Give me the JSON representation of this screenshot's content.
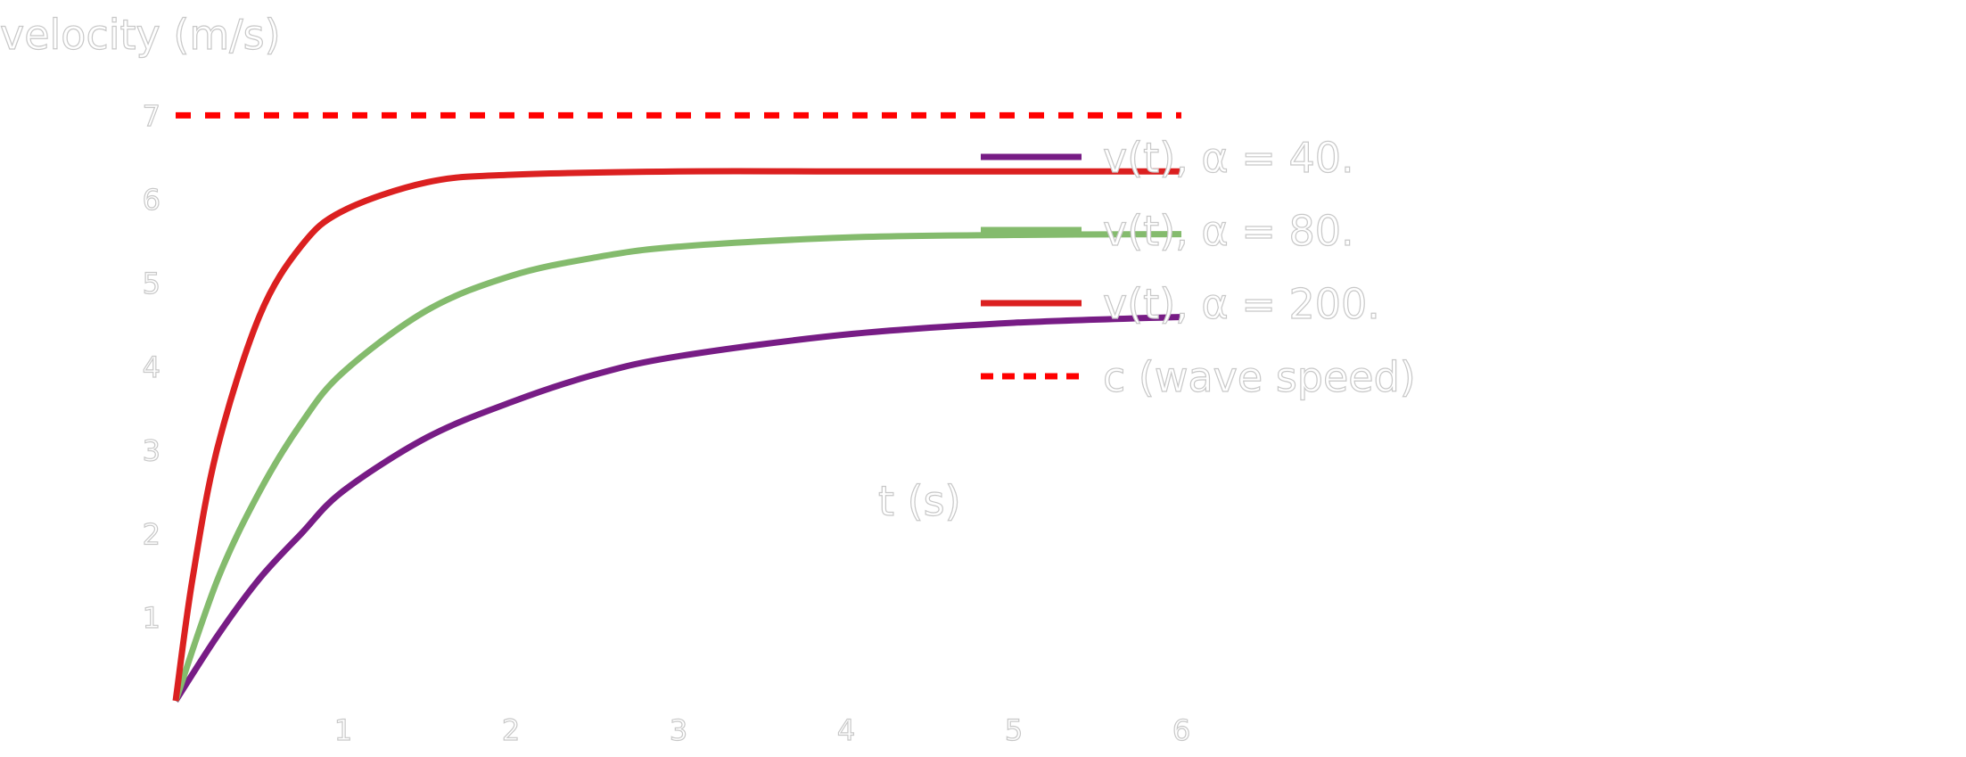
{
  "chart_data": {
    "type": "line",
    "title": "",
    "xlabel": "t (s)",
    "ylabel": "velocity (m/s)",
    "xlim": [
      0,
      6
    ],
    "ylim": [
      0,
      7
    ],
    "xticks": [
      "1",
      "2",
      "3",
      "4",
      "5",
      "6"
    ],
    "yticks": [
      "1",
      "2",
      "3",
      "4",
      "5",
      "6",
      "7"
    ],
    "grid": false,
    "legend_position": "right",
    "series": [
      {
        "name": "v(t), α = 40.",
        "color": "#771c85",
        "dash": false,
        "x": [
          0,
          0.25,
          0.5,
          0.75,
          1,
          1.5,
          2,
          2.5,
          3,
          4,
          5,
          6
        ],
        "y": [
          0,
          0.78,
          1.46,
          2.0,
          2.51,
          3.15,
          3.57,
          3.9,
          4.12,
          4.38,
          4.52,
          4.59
        ]
      },
      {
        "name": "v(t), α = 80.",
        "color": "#84bb6d",
        "dash": false,
        "x": [
          0,
          0.25,
          0.5,
          0.75,
          1,
          1.5,
          2,
          2.5,
          3,
          4,
          5,
          6
        ],
        "y": [
          0,
          1.45,
          2.5,
          3.32,
          3.93,
          4.67,
          5.08,
          5.3,
          5.43,
          5.54,
          5.57,
          5.58
        ]
      },
      {
        "name": "v(t), α = 200.",
        "color": "#db2020",
        "dash": false,
        "x": [
          0,
          0.1,
          0.25,
          0.5,
          0.75,
          1,
          1.5,
          2,
          3,
          4,
          5,
          6
        ],
        "y": [
          0,
          1.45,
          3.03,
          4.6,
          5.44,
          5.86,
          6.2,
          6.29,
          6.33,
          6.33,
          6.33,
          6.33
        ]
      },
      {
        "name": "c (wave speed)",
        "color": "#ff0000",
        "dash": true,
        "x": [
          0,
          6
        ],
        "y": [
          7,
          7
        ]
      }
    ]
  }
}
